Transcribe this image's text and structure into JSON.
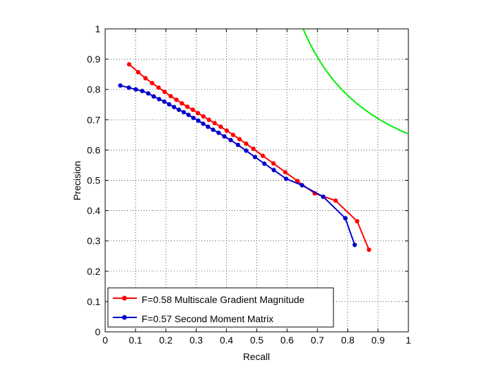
{
  "chart_data": {
    "type": "line",
    "title": "",
    "xlabel": "Recall",
    "ylabel": "Precision",
    "xlim": [
      0,
      1
    ],
    "ylim": [
      0,
      1
    ],
    "xticks": [
      "0",
      "0.1",
      "0.2",
      "0.3",
      "0.4",
      "0.5",
      "0.6",
      "0.7",
      "0.8",
      "0.9",
      "1"
    ],
    "yticks": [
      "0",
      "0.1",
      "0.2",
      "0.3",
      "0.4",
      "0.5",
      "0.6",
      "0.7",
      "0.8",
      "0.9",
      "1"
    ],
    "grid": true,
    "legend_position": "bottom-left",
    "series": [
      {
        "name": "F=0.58 Multiscale Gradient Magnitude",
        "color": "#ff0000",
        "marker": "dot",
        "x": [
          0.079,
          0.109,
          0.133,
          0.155,
          0.176,
          0.196,
          0.216,
          0.235,
          0.253,
          0.271,
          0.289,
          0.306,
          0.324,
          0.342,
          0.361,
          0.381,
          0.401,
          0.422,
          0.443,
          0.465,
          0.489,
          0.52,
          0.555,
          0.594,
          0.634,
          0.691,
          0.76,
          0.831,
          0.87
        ],
        "y": [
          0.883,
          0.857,
          0.837,
          0.821,
          0.806,
          0.792,
          0.778,
          0.766,
          0.754,
          0.743,
          0.733,
          0.722,
          0.711,
          0.7,
          0.689,
          0.677,
          0.664,
          0.65,
          0.636,
          0.621,
          0.604,
          0.581,
          0.556,
          0.527,
          0.498,
          0.457,
          0.433,
          0.365,
          0.271
        ]
      },
      {
        "name": "F=0.57 Second Moment Matrix",
        "color": "#0000cc",
        "marker": "dot",
        "x": [
          0.05,
          0.078,
          0.101,
          0.122,
          0.142,
          0.16,
          0.178,
          0.195,
          0.211,
          0.227,
          0.243,
          0.259,
          0.275,
          0.291,
          0.307,
          0.323,
          0.339,
          0.356,
          0.374,
          0.393,
          0.414,
          0.438,
          0.465,
          0.494,
          0.525,
          0.556,
          0.597,
          0.649,
          0.719,
          0.792,
          0.823
        ],
        "y": [
          0.813,
          0.806,
          0.8,
          0.795,
          0.787,
          0.777,
          0.768,
          0.76,
          0.751,
          0.742,
          0.733,
          0.725,
          0.716,
          0.706,
          0.697,
          0.687,
          0.677,
          0.667,
          0.657,
          0.645,
          0.633,
          0.617,
          0.598,
          0.577,
          0.555,
          0.534,
          0.505,
          0.484,
          0.446,
          0.375,
          0.287
        ]
      }
    ],
    "reference_curve": {
      "color": "#00ee00",
      "f_value": 0.79,
      "x_range": [
        0.65,
        1.0
      ]
    }
  }
}
